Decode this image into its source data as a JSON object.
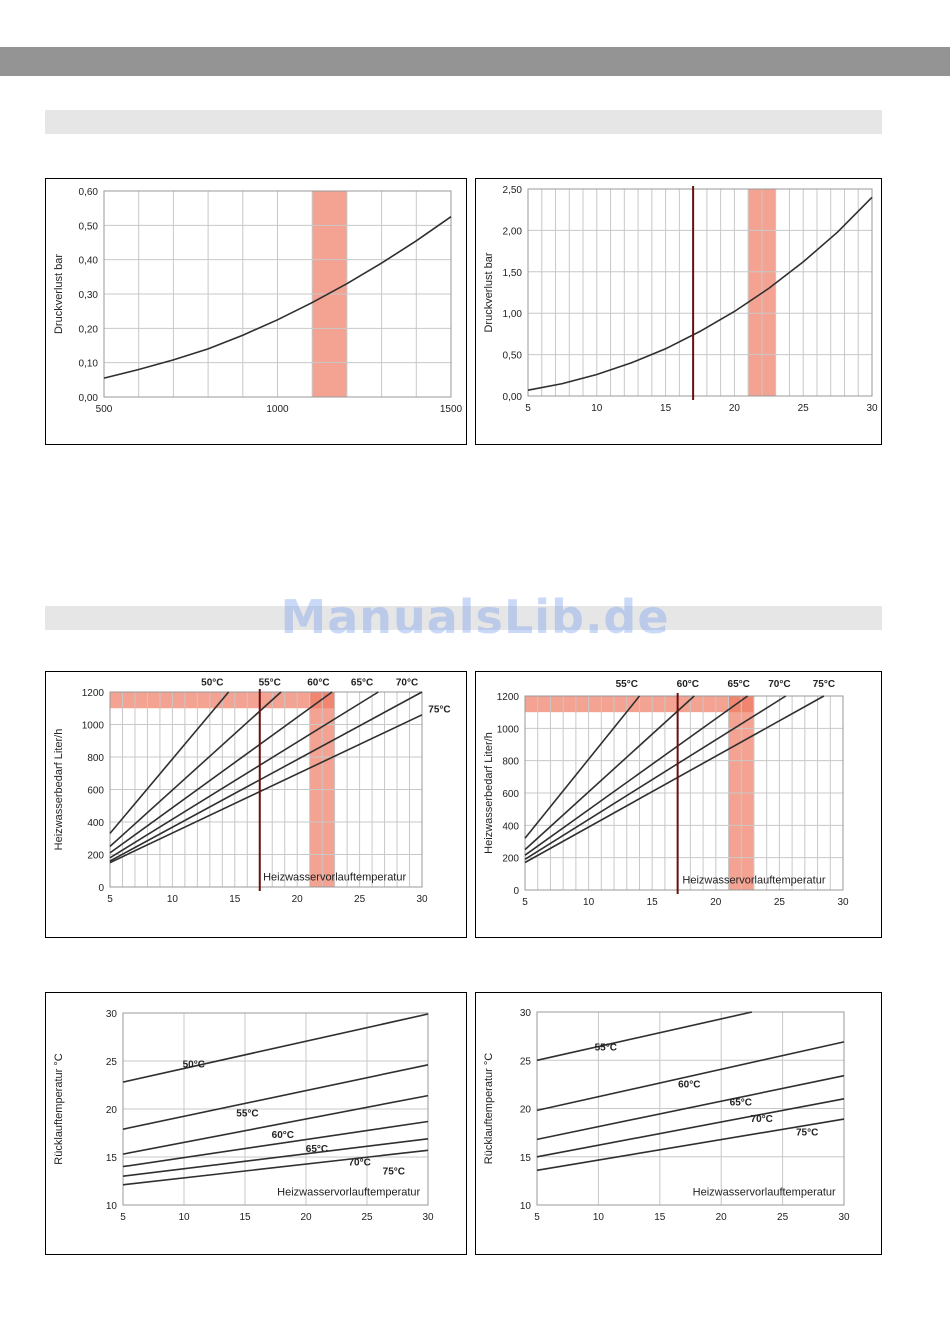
{
  "watermark": "ManualsLib.de",
  "colors": {
    "highlight": "#f07b63",
    "marker": "#6b0e0e",
    "curve": "#2f2f2f",
    "grid": "#c8c8c8",
    "band": "#e6e6e6",
    "topbar": "#949494"
  },
  "chart_data": [
    {
      "type": "line",
      "ylabel": "Druckverlust bar",
      "xlim": [
        500,
        1500
      ],
      "ylim": [
        0,
        0.6
      ],
      "xticks": [
        500,
        1000,
        1500
      ],
      "xtick_labels": [
        "500",
        "1000",
        "1500"
      ],
      "yticks": [
        0,
        0.1,
        0.2,
        0.3,
        0.4,
        0.5,
        0.6
      ],
      "ytick_labels": [
        "0,00",
        "0,10",
        "0,20",
        "0,30",
        "0,40",
        "0,50",
        "0,60"
      ],
      "xgrid_step": 100,
      "highlight_x": [
        1100,
        1200
      ],
      "series": [
        {
          "x": [
            500,
            600,
            700,
            800,
            900,
            1000,
            1100,
            1200,
            1300,
            1400,
            1500
          ],
          "y": [
            0.055,
            0.08,
            0.108,
            0.14,
            0.18,
            0.225,
            0.275,
            0.33,
            0.39,
            0.455,
            0.525
          ]
        }
      ],
      "grid": true
    },
    {
      "type": "line",
      "ylabel": "Druckverlust bar",
      "xlim": [
        5,
        30
      ],
      "ylim": [
        0,
        2.5
      ],
      "xticks": [
        5,
        10,
        15,
        20,
        25,
        30
      ],
      "xtick_labels": [
        "5",
        "10",
        "15",
        "20",
        "25",
        "30"
      ],
      "yticks": [
        0,
        0.5,
        1.0,
        1.5,
        2.0,
        2.5
      ],
      "ytick_labels": [
        "0,00",
        "0,50",
        "1,00",
        "1,50",
        "2,00",
        "2,50"
      ],
      "xgrid_step": 1,
      "highlight_x": [
        21,
        23
      ],
      "marker_x": 17,
      "series": [
        {
          "x": [
            5,
            7.5,
            10,
            12.5,
            15,
            17.5,
            20,
            22.5,
            25,
            27.5,
            30
          ],
          "y": [
            0.07,
            0.15,
            0.26,
            0.4,
            0.57,
            0.78,
            1.02,
            1.3,
            1.62,
            1.98,
            2.4
          ]
        }
      ],
      "grid": true
    },
    {
      "type": "line",
      "ylabel": "Heizwasserbedarf Liter/h",
      "xlabel": "Heizwasservorlauftemperatur",
      "xlim": [
        5,
        30
      ],
      "ylim": [
        0,
        1200
      ],
      "xticks": [
        5,
        10,
        15,
        20,
        25,
        30
      ],
      "xtick_labels": [
        "5",
        "10",
        "15",
        "20",
        "25",
        "30"
      ],
      "yticks": [
        0,
        200,
        400,
        600,
        800,
        1000,
        1200
      ],
      "ytick_labels": [
        "0",
        "200",
        "400",
        "600",
        "800",
        "1000",
        "1200"
      ],
      "xgrid_step": 1,
      "highlight_x": [
        21,
        23
      ],
      "highlight_y": [
        1100,
        1200
      ],
      "marker_x": 17,
      "series": [
        {
          "name": "50°C",
          "x": [
            5,
            14.5
          ],
          "y": [
            330,
            1200
          ]
        },
        {
          "name": "55°C",
          "x": [
            5,
            18.7
          ],
          "y": [
            250,
            1200
          ]
        },
        {
          "name": "60°C",
          "x": [
            5,
            22.8
          ],
          "y": [
            210,
            1200
          ]
        },
        {
          "name": "65°C",
          "x": [
            5,
            26.5
          ],
          "y": [
            180,
            1200
          ]
        },
        {
          "name": "70°C",
          "x": [
            5,
            30
          ],
          "y": [
            160,
            1200
          ]
        },
        {
          "name": "75°C",
          "x": [
            5,
            30
          ],
          "y": [
            150,
            1060
          ]
        }
      ],
      "grid": true
    },
    {
      "type": "line",
      "ylabel": "Heizwasserbedarf Liter/h",
      "xlabel": "Heizwasservorlauftemperatur",
      "xlim": [
        5,
        30
      ],
      "ylim": [
        0,
        1200
      ],
      "xticks": [
        5,
        10,
        15,
        20,
        25,
        30
      ],
      "xtick_labels": [
        "5",
        "10",
        "15",
        "20",
        "25",
        "30"
      ],
      "yticks": [
        0,
        200,
        400,
        600,
        800,
        1000,
        1200
      ],
      "ytick_labels": [
        "0",
        "200",
        "400",
        "600",
        "800",
        "1000",
        "1200"
      ],
      "xgrid_step": 1,
      "highlight_x": [
        21,
        23
      ],
      "highlight_y": [
        1100,
        1200
      ],
      "marker_x": 17,
      "series": [
        {
          "name": "55°C",
          "x": [
            5,
            14
          ],
          "y": [
            320,
            1200
          ]
        },
        {
          "name": "60°C",
          "x": [
            5,
            18.3
          ],
          "y": [
            250,
            1200
          ]
        },
        {
          "name": "65°C",
          "x": [
            5,
            22.5
          ],
          "y": [
            215,
            1200
          ]
        },
        {
          "name": "70°C",
          "x": [
            5,
            25.5
          ],
          "y": [
            190,
            1200
          ]
        },
        {
          "name": "75°C",
          "x": [
            5,
            28.5
          ],
          "y": [
            170,
            1200
          ]
        }
      ],
      "grid": true
    },
    {
      "type": "line",
      "ylabel": "Rücklauftemperatur °C",
      "xlabel": "Heizwasservorlauftemperatur",
      "xlim": [
        5,
        30
      ],
      "ylim": [
        10,
        30
      ],
      "xticks": [
        5,
        10,
        15,
        20,
        25,
        30
      ],
      "xtick_labels": [
        "5",
        "10",
        "15",
        "20",
        "25",
        "30"
      ],
      "yticks": [
        10,
        15,
        20,
        25,
        30
      ],
      "ytick_labels": [
        "10",
        "15",
        "20",
        "25",
        "30"
      ],
      "xgrid_step": 5,
      "series": [
        {
          "name": "50°C",
          "x": [
            5,
            30
          ],
          "y": [
            22.8,
            29.9
          ]
        },
        {
          "name": "55°C",
          "x": [
            5,
            30
          ],
          "y": [
            17.9,
            24.6
          ]
        },
        {
          "name": "60°C",
          "x": [
            5,
            30
          ],
          "y": [
            15.3,
            21.4
          ]
        },
        {
          "name": "65°C",
          "x": [
            5,
            30
          ],
          "y": [
            14.0,
            18.7
          ]
        },
        {
          "name": "70°C",
          "x": [
            5,
            30
          ],
          "y": [
            13.0,
            16.9
          ]
        },
        {
          "name": "75°C",
          "x": [
            5,
            30
          ],
          "y": [
            12.1,
            15.7
          ]
        }
      ],
      "grid": true
    },
    {
      "type": "line",
      "ylabel": "Rücklauftemperatur °C",
      "xlabel": "Heizwasservorlauftemperatur",
      "xlim": [
        5,
        30
      ],
      "ylim": [
        10,
        30
      ],
      "xticks": [
        5,
        10,
        15,
        20,
        25,
        30
      ],
      "xtick_labels": [
        "5",
        "10",
        "15",
        "20",
        "25",
        "30"
      ],
      "yticks": [
        10,
        15,
        20,
        25,
        30
      ],
      "ytick_labels": [
        "10",
        "15",
        "20",
        "25",
        "30"
      ],
      "xgrid_step": 5,
      "series": [
        {
          "name": "55°C",
          "x": [
            5,
            22.5
          ],
          "y": [
            25.0,
            30.0
          ]
        },
        {
          "name": "60°C",
          "x": [
            5,
            30
          ],
          "y": [
            19.8,
            26.9
          ]
        },
        {
          "name": "65°C",
          "x": [
            5,
            30
          ],
          "y": [
            16.8,
            23.4
          ]
        },
        {
          "name": "70°C",
          "x": [
            5,
            30
          ],
          "y": [
            15.0,
            21.0
          ]
        },
        {
          "name": "75°C",
          "x": [
            5,
            30
          ],
          "y": [
            13.6,
            18.9
          ]
        }
      ],
      "grid": true
    }
  ]
}
